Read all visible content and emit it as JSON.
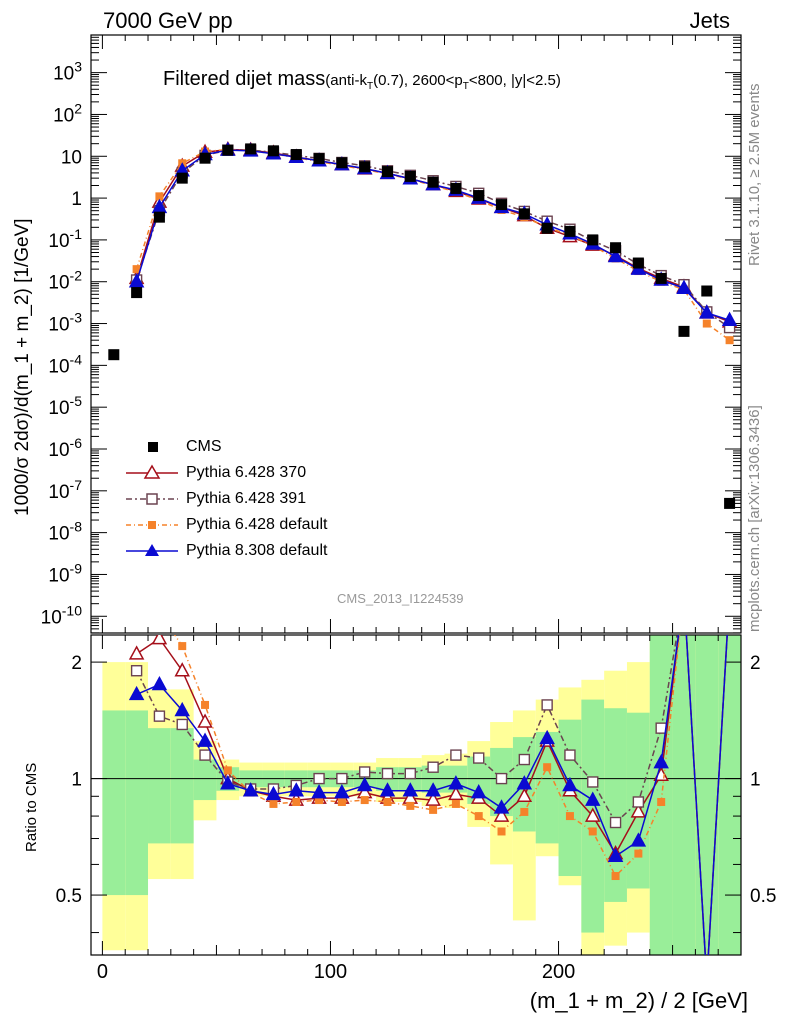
{
  "header": {
    "left": "7000 GeV pp",
    "right": "Jets"
  },
  "side_labels": {
    "rivet": "Rivet 3.1.10, ≥ 2.5M events",
    "mcplots": "mcplots.cern.ch [arXiv:1306.3436]"
  },
  "watermark": "CMS_2013_I1224539",
  "plot_title": {
    "main": "Filtered dijet mass",
    "open": "(anti-k",
    "sub1": "T",
    "mid": "(0.7), 2600<p",
    "sub2": "T",
    "close": "<800, |y|<2.5)"
  },
  "colors": {
    "cms": "#000000",
    "p370": "#a50f1a",
    "p391": "#6b4350",
    "p6def": "#f5822a",
    "p8def": "#0a0ad2",
    "band_yellow": "#ffff99",
    "band_green": "#99ee99"
  },
  "chart_data": {
    "type": "line",
    "xlabel": "(m_1 + m_2) / 2 [GeV]",
    "ylabel": "1000/σ 2dσ)/d(m_1 + m_2) [1/GeV]",
    "ratio_ylabel": "Ratio to CMS",
    "xlim": [
      -5,
      280
    ],
    "ylim_log": [
      -10.4,
      3.9
    ],
    "ratio_ylim": [
      0.35,
      2.35
    ],
    "x_ticks": [
      0,
      100,
      200
    ],
    "y_ticks": [
      "10^3",
      "10^2",
      "10",
      "1",
      "10^-1",
      "10^-2",
      "10^-3",
      "10^-4",
      "10^-5",
      "10^-6",
      "10^-7",
      "10^-8",
      "10^-9",
      "10^-10"
    ],
    "ratio_ticks": [
      "2",
      "1",
      "0.5"
    ],
    "legend": [
      "CMS",
      "Pythia 6.428 370",
      "Pythia 6.428 391",
      "Pythia 6.428 default",
      "Pythia 8.308 default"
    ],
    "cms": {
      "x": [
        5,
        15,
        25,
        35,
        45,
        55,
        65,
        75,
        85,
        95,
        105,
        115,
        125,
        135,
        145,
        155,
        165,
        175,
        185,
        195,
        205,
        215,
        225,
        235,
        245,
        255,
        265,
        275
      ],
      "y": [
        0.00018,
        0.0055,
        0.35,
        3.0,
        9.0,
        14.0,
        15.0,
        13.5,
        11.0,
        8.8,
        7.0,
        5.6,
        4.3,
        3.3,
        2.4,
        1.7,
        1.15,
        0.7,
        0.42,
        0.19,
        0.16,
        0.1,
        0.065,
        0.028,
        0.012,
        0.00065,
        0.006,
        5e-08
      ]
    },
    "series": [
      {
        "name": "Pythia 6.428 370",
        "x": [
          15,
          25,
          35,
          45,
          55,
          65,
          75,
          85,
          95,
          105,
          115,
          125,
          135,
          145,
          155,
          165,
          175,
          185,
          195,
          205,
          215,
          225,
          235,
          245,
          255,
          265,
          275
        ],
        "y": [
          0.012,
          0.8,
          5.8,
          12.5,
          14.5,
          14.0,
          12.0,
          9.6,
          7.8,
          6.3,
          5.0,
          3.9,
          2.9,
          2.1,
          1.45,
          0.95,
          0.6,
          0.38,
          0.19,
          0.12,
          0.075,
          0.042,
          0.021,
          0.012,
          0.0075,
          0.0018,
          0.0011
        ],
        "ratio": [
          2.1,
          2.3,
          1.9,
          1.4,
          1.0,
          0.93,
          0.9,
          0.88,
          0.89,
          0.89,
          0.92,
          0.89,
          0.89,
          0.88,
          0.91,
          0.89,
          0.8,
          0.9,
          1.25,
          0.93,
          0.8,
          0.64,
          0.82,
          1.02,
          3.0,
          0.3,
          3.0
        ]
      },
      {
        "name": "Pythia 6.428 391",
        "x": [
          15,
          25,
          35,
          45,
          55,
          65,
          75,
          85,
          95,
          105,
          115,
          125,
          135,
          145,
          155,
          165,
          175,
          185,
          195,
          205,
          215,
          225,
          235,
          245,
          255,
          265,
          275
        ],
        "y": [
          0.011,
          0.5,
          4.0,
          10.5,
          14.0,
          14.0,
          12.5,
          10.5,
          8.9,
          7.1,
          5.9,
          4.5,
          3.5,
          2.6,
          1.9,
          1.3,
          0.75,
          0.48,
          0.28,
          0.18,
          0.095,
          0.055,
          0.026,
          0.014,
          0.0085,
          0.0019,
          0.0008
        ],
        "ratio": [
          1.9,
          1.45,
          1.38,
          1.15,
          0.98,
          0.94,
          0.94,
          0.96,
          1.0,
          1.0,
          1.04,
          1.03,
          1.03,
          1.07,
          1.15,
          1.13,
          1.0,
          1.12,
          1.55,
          1.15,
          0.98,
          0.77,
          0.87,
          1.35,
          3.0,
          0.3,
          3.0
        ]
      },
      {
        "name": "Pythia 6.428 default",
        "x": [
          15,
          25,
          35,
          45,
          55,
          65,
          75,
          85,
          95,
          105,
          115,
          125,
          135,
          145,
          155,
          165,
          175,
          185,
          195,
          205,
          215,
          225,
          235,
          245,
          255,
          265,
          275
        ],
        "y": [
          0.02,
          1.1,
          6.8,
          13.0,
          14.5,
          13.5,
          11.5,
          9.2,
          7.5,
          6.0,
          4.8,
          3.8,
          2.8,
          2.0,
          1.4,
          0.9,
          0.52,
          0.35,
          0.2,
          0.13,
          0.072,
          0.036,
          0.018,
          0.01,
          0.0065,
          0.001,
          0.0004
        ],
        "ratio": [
          2.6,
          2.7,
          2.2,
          1.55,
          1.05,
          0.92,
          0.86,
          0.87,
          0.88,
          0.87,
          0.88,
          0.87,
          0.85,
          0.83,
          0.86,
          0.8,
          0.73,
          0.82,
          1.07,
          0.8,
          0.73,
          0.56,
          0.64,
          0.87,
          3.0,
          0.3,
          3.0
        ]
      },
      {
        "name": "Pythia 8.308 default",
        "x": [
          15,
          25,
          35,
          45,
          55,
          65,
          75,
          85,
          95,
          105,
          115,
          125,
          135,
          145,
          155,
          165,
          175,
          185,
          195,
          205,
          215,
          225,
          235,
          245,
          255,
          265,
          275
        ],
        "y": [
          0.01,
          0.6,
          4.5,
          11.0,
          14.0,
          13.5,
          11.5,
          9.5,
          7.8,
          6.3,
          5.1,
          3.9,
          2.9,
          2.1,
          1.55,
          1.0,
          0.6,
          0.42,
          0.23,
          0.14,
          0.08,
          0.04,
          0.02,
          0.011,
          0.007,
          0.0018,
          0.0012
        ],
        "ratio": [
          1.65,
          1.75,
          1.5,
          1.25,
          0.97,
          0.93,
          0.91,
          0.93,
          0.92,
          0.92,
          0.96,
          0.93,
          0.93,
          0.93,
          0.97,
          0.92,
          0.84,
          0.97,
          1.27,
          0.96,
          0.88,
          0.63,
          0.69,
          1.1,
          3.0,
          0.3,
          3.0
        ]
      }
    ],
    "bands": {
      "edges": [
        0,
        10,
        20,
        30,
        40,
        50,
        60,
        70,
        80,
        90,
        100,
        110,
        120,
        130,
        140,
        150,
        160,
        170,
        180,
        190,
        200,
        210,
        220,
        230,
        240,
        250,
        260,
        270,
        280
      ],
      "green_lo": [
        0.5,
        0.5,
        0.68,
        0.68,
        0.88,
        0.93,
        0.95,
        0.95,
        0.95,
        0.95,
        0.95,
        0.95,
        0.93,
        0.93,
        0.92,
        0.92,
        0.86,
        0.8,
        0.73,
        0.68,
        0.56,
        0.4,
        0.48,
        0.52,
        0.3,
        0.3,
        0.3,
        0.3
      ],
      "green_hi": [
        1.5,
        1.5,
        1.35,
        1.35,
        1.12,
        1.07,
        1.05,
        1.05,
        1.05,
        1.05,
        1.05,
        1.05,
        1.07,
        1.07,
        1.08,
        1.08,
        1.14,
        1.2,
        1.28,
        1.32,
        1.42,
        1.6,
        1.52,
        1.48,
        3.0,
        3.0,
        3.0,
        3.0
      ],
      "yellow_lo": [
        0.36,
        0.36,
        0.55,
        0.55,
        0.78,
        0.88,
        0.9,
        0.9,
        0.9,
        0.9,
        0.9,
        0.9,
        0.87,
        0.87,
        0.85,
        0.84,
        0.75,
        0.6,
        0.43,
        0.63,
        0.53,
        0.3,
        0.37,
        0.4,
        0.3,
        0.3,
        0.3,
        0.3
      ],
      "yellow_hi": [
        2.0,
        2.0,
        1.7,
        1.7,
        1.25,
        1.12,
        1.1,
        1.1,
        1.1,
        1.1,
        1.1,
        1.1,
        1.13,
        1.13,
        1.15,
        1.16,
        1.25,
        1.4,
        1.5,
        1.6,
        1.72,
        1.8,
        1.9,
        2.0,
        3.0,
        3.0,
        3.0,
        3.0
      ]
    }
  }
}
